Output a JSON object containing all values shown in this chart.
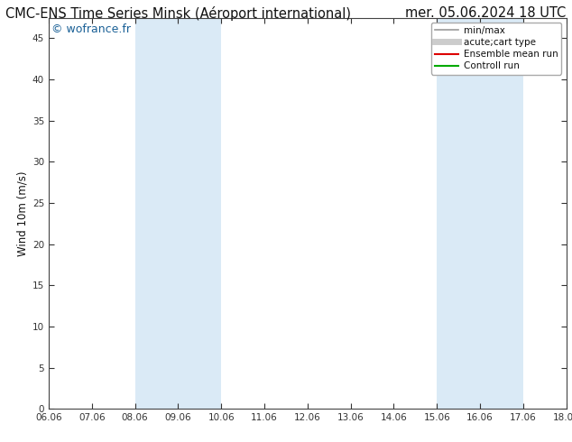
{
  "title_left": "CMC-ENS Time Series Minsk (Aéroport international)",
  "title_right": "mer. 05.06.2024 18 UTC",
  "ylabel": "Wind 10m (m/s)",
  "watermark": "© wofrance.fr",
  "bg_color": "#ffffff",
  "plot_bg_color": "#ffffff",
  "ylim": [
    0,
    47.5
  ],
  "yticks": [
    0,
    5,
    10,
    15,
    20,
    25,
    30,
    35,
    40,
    45
  ],
  "xtick_labels": [
    "06.06",
    "07.06",
    "08.06",
    "09.06",
    "10.06",
    "11.06",
    "12.06",
    "13.06",
    "14.06",
    "15.06",
    "16.06",
    "17.06",
    "18.06"
  ],
  "xtick_positions": [
    0,
    1,
    2,
    3,
    4,
    5,
    6,
    7,
    8,
    9,
    10,
    11,
    12
  ],
  "shaded_bands": [
    {
      "xmin": 2,
      "xmax": 4,
      "color": "#daeaf6"
    },
    {
      "xmin": 9,
      "xmax": 11,
      "color": "#daeaf6"
    }
  ],
  "legend_entries": [
    {
      "label": "min/max",
      "color": "#999999",
      "lw": 1.2
    },
    {
      "label": "acute;cart type",
      "color": "#cccccc",
      "lw": 5
    },
    {
      "label": "Ensemble mean run",
      "color": "#dd0000",
      "lw": 1.5
    },
    {
      "label": "Controll run",
      "color": "#00aa00",
      "lw": 1.5
    }
  ],
  "border_color": "#444444",
  "tick_color": "#333333",
  "title_fontsize": 10.5,
  "axis_label_fontsize": 8.5,
  "tick_fontsize": 7.5,
  "legend_fontsize": 7.5,
  "watermark_color": "#1a6096",
  "watermark_fontsize": 9
}
